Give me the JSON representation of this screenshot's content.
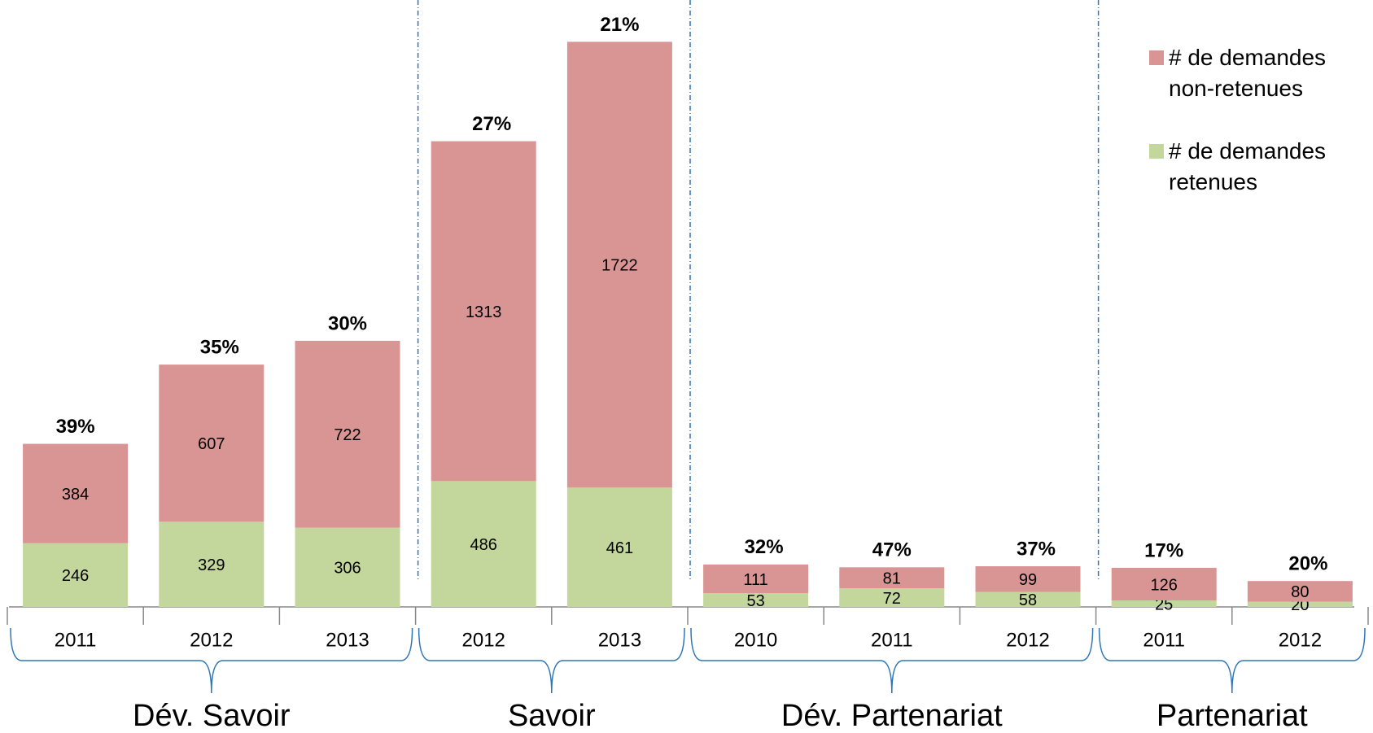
{
  "chart_data": {
    "type": "stacked_bar",
    "groups": [
      {
        "name": "Dév. Savoir",
        "categories": [
          "2011",
          "2012",
          "2013"
        ]
      },
      {
        "name": "Savoir",
        "categories": [
          "2012",
          "2013"
        ]
      },
      {
        "name": "Dév. Partenariat",
        "categories": [
          "2010",
          "2011",
          "2012"
        ]
      },
      {
        "name": "Partenariat",
        "categories": [
          "2011",
          "2012"
        ]
      }
    ],
    "series": [
      {
        "name": "# de demandes retenues",
        "color": "#c3d69b",
        "values": [
          246,
          329,
          306,
          486,
          461,
          53,
          72,
          58,
          25,
          20
        ]
      },
      {
        "name": "# de demandes non-retenues",
        "color": "#d99594",
        "values": [
          384,
          607,
          722,
          1313,
          1722,
          111,
          81,
          99,
          126,
          80
        ]
      }
    ],
    "share": {
      "values": [
        39,
        35,
        30,
        27,
        21,
        32,
        47,
        37,
        17,
        20
      ],
      "value_labels": [
        "39%",
        "35%",
        "30%",
        "27%",
        "21%",
        "32%",
        "47%",
        "37%",
        "17%",
        "20%"
      ]
    },
    "ylim": [
      0,
      2200
    ],
    "legend": "top-right"
  }
}
